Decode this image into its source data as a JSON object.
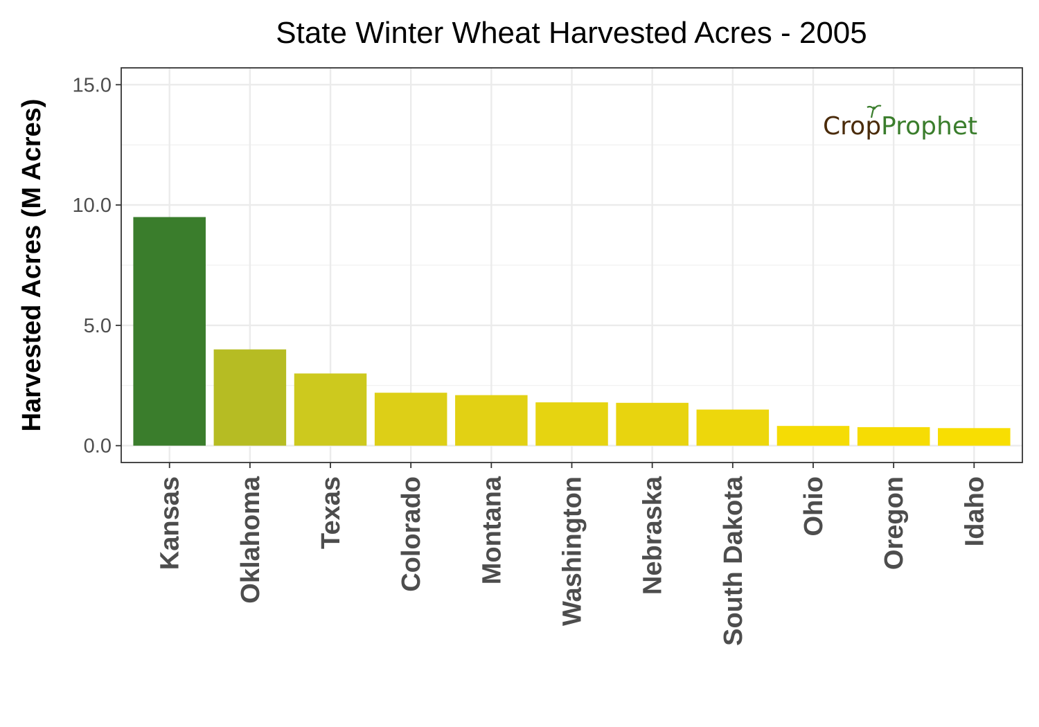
{
  "chart_data": {
    "type": "bar",
    "title": "State Winter Wheat Harvested Acres - 2005",
    "xlabel": "",
    "ylabel": "Harvested Acres (M Acres)",
    "ylim": [
      -0.7,
      15.7
    ],
    "yticks": [
      0,
      5,
      10,
      15
    ],
    "ytick_labels": [
      "0.0",
      "5.0",
      "10.0",
      "15.0"
    ],
    "grid": true,
    "legend": "none",
    "categories": [
      "Kansas",
      "Oklahoma",
      "Texas",
      "Colorado",
      "Montana",
      "Washington",
      "Nebraska",
      "South Dakota",
      "Ohio",
      "Oregon",
      "Idaho"
    ],
    "values": [
      9.5,
      4.0,
      3.0,
      2.2,
      2.1,
      1.8,
      1.78,
      1.5,
      0.82,
      0.77,
      0.73
    ],
    "colors": [
      "#3a7d2c",
      "#b6bc23",
      "#cdc91e",
      "#ddcf17",
      "#e2d114",
      "#e6d411",
      "#e8d40f",
      "#edd70c",
      "#f5dc05",
      "#f6dc04",
      "#f8de02"
    ]
  },
  "logo": {
    "part1": "Cr",
    "part2": "p",
    "part3": "Prophet",
    "color_dark": "#4a2b0a",
    "color_green": "#3a7d2c"
  }
}
